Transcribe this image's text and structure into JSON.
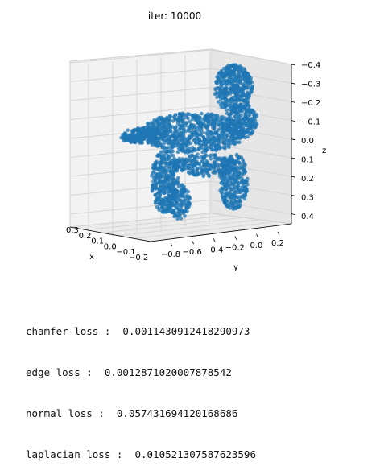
{
  "chart_data": {
    "type": "scatter",
    "projection": "3d",
    "title": "iter: 10000",
    "xlabel": "x",
    "ylabel": "y",
    "zlabel": "z",
    "x_ticks": [
      "0.3",
      "0.2",
      "0.1",
      "0.0",
      "−0.1",
      "−0.2"
    ],
    "y_ticks": [
      "−0.8",
      "−0.6",
      "−0.4",
      "−0.2",
      "0.0",
      "0.2"
    ],
    "z_ticks": [
      "−0.4",
      "−0.3",
      "−0.2",
      "−0.1",
      "0.0",
      "0.1",
      "0.2",
      "0.3",
      "0.4"
    ],
    "z_inverted": true,
    "grid": true,
    "point_color": "#1f77b4"
  },
  "losses": [
    {
      "label": "chamfer loss :  ",
      "value": "0.0011430912418290973"
    },
    {
      "label": "edge loss :  ",
      "value": "0.0012871020007878542"
    },
    {
      "label": "normal loss :  ",
      "value": "0.057431694120168686"
    },
    {
      "label": "laplacian loss :  ",
      "value": "0.010521307587623596"
    }
  ]
}
